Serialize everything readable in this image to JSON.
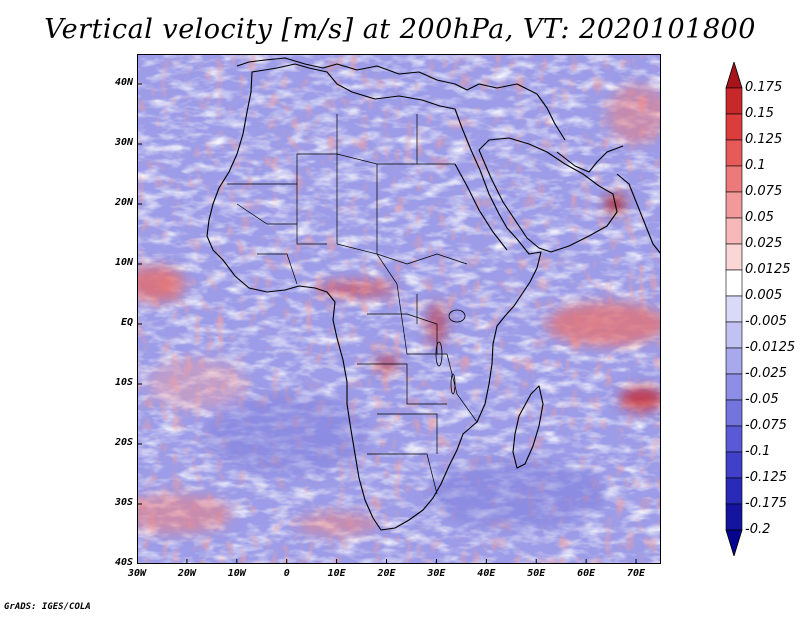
{
  "title": "Vertical velocity [m/s] at 200hPa, VT: 2020101800",
  "credit": "GrADS: IGES/COLA",
  "map": {
    "projection": "lat-lon",
    "lon_range": [
      -30,
      75
    ],
    "lat_range": [
      -40,
      45
    ],
    "field": "vertical velocity",
    "level": "200hPa",
    "y_ticks": [
      {
        "label": "40N",
        "lat": 40
      },
      {
        "label": "30N",
        "lat": 30
      },
      {
        "label": "20N",
        "lat": 20
      },
      {
        "label": "10N",
        "lat": 10
      },
      {
        "label": "EQ",
        "lat": 0
      },
      {
        "label": "10S",
        "lat": -10
      },
      {
        "label": "20S",
        "lat": -20
      },
      {
        "label": "30S",
        "lat": -30
      },
      {
        "label": "40S",
        "lat": -40
      }
    ],
    "x_ticks": [
      {
        "label": "30W",
        "lon": -30
      },
      {
        "label": "20W",
        "lon": -20
      },
      {
        "label": "10W",
        "lon": -10
      },
      {
        "label": "0",
        "lon": 0
      },
      {
        "label": "10E",
        "lon": 10
      },
      {
        "label": "20E",
        "lon": 20
      },
      {
        "label": "30E",
        "lon": 30
      },
      {
        "label": "40E",
        "lon": 40
      },
      {
        "label": "50E",
        "lon": 50
      },
      {
        "label": "60E",
        "lon": 60
      },
      {
        "label": "70E",
        "lon": 70
      }
    ]
  },
  "colorbar": {
    "labels": [
      "0.175",
      "0.15",
      "0.125",
      "0.1",
      "0.075",
      "0.05",
      "0.025",
      "0.0125",
      "0.005",
      "-0.005",
      "-0.0125",
      "-0.025",
      "-0.05",
      "-0.075",
      "-0.1",
      "-0.125",
      "-0.175",
      "-0.2"
    ],
    "colors": [
      "#a8141b",
      "#c8282a",
      "#dc3c3c",
      "#e65a5a",
      "#ec7a7a",
      "#f29a9a",
      "#f6b8b8",
      "#fad6d6",
      "#ffffff",
      "#dadaf8",
      "#c2c2f2",
      "#a8a8ec",
      "#8e8ee6",
      "#7474de",
      "#5a5ad6",
      "#4040c8",
      "#2a2ab8",
      "#14149e",
      "#050590"
    ]
  }
}
